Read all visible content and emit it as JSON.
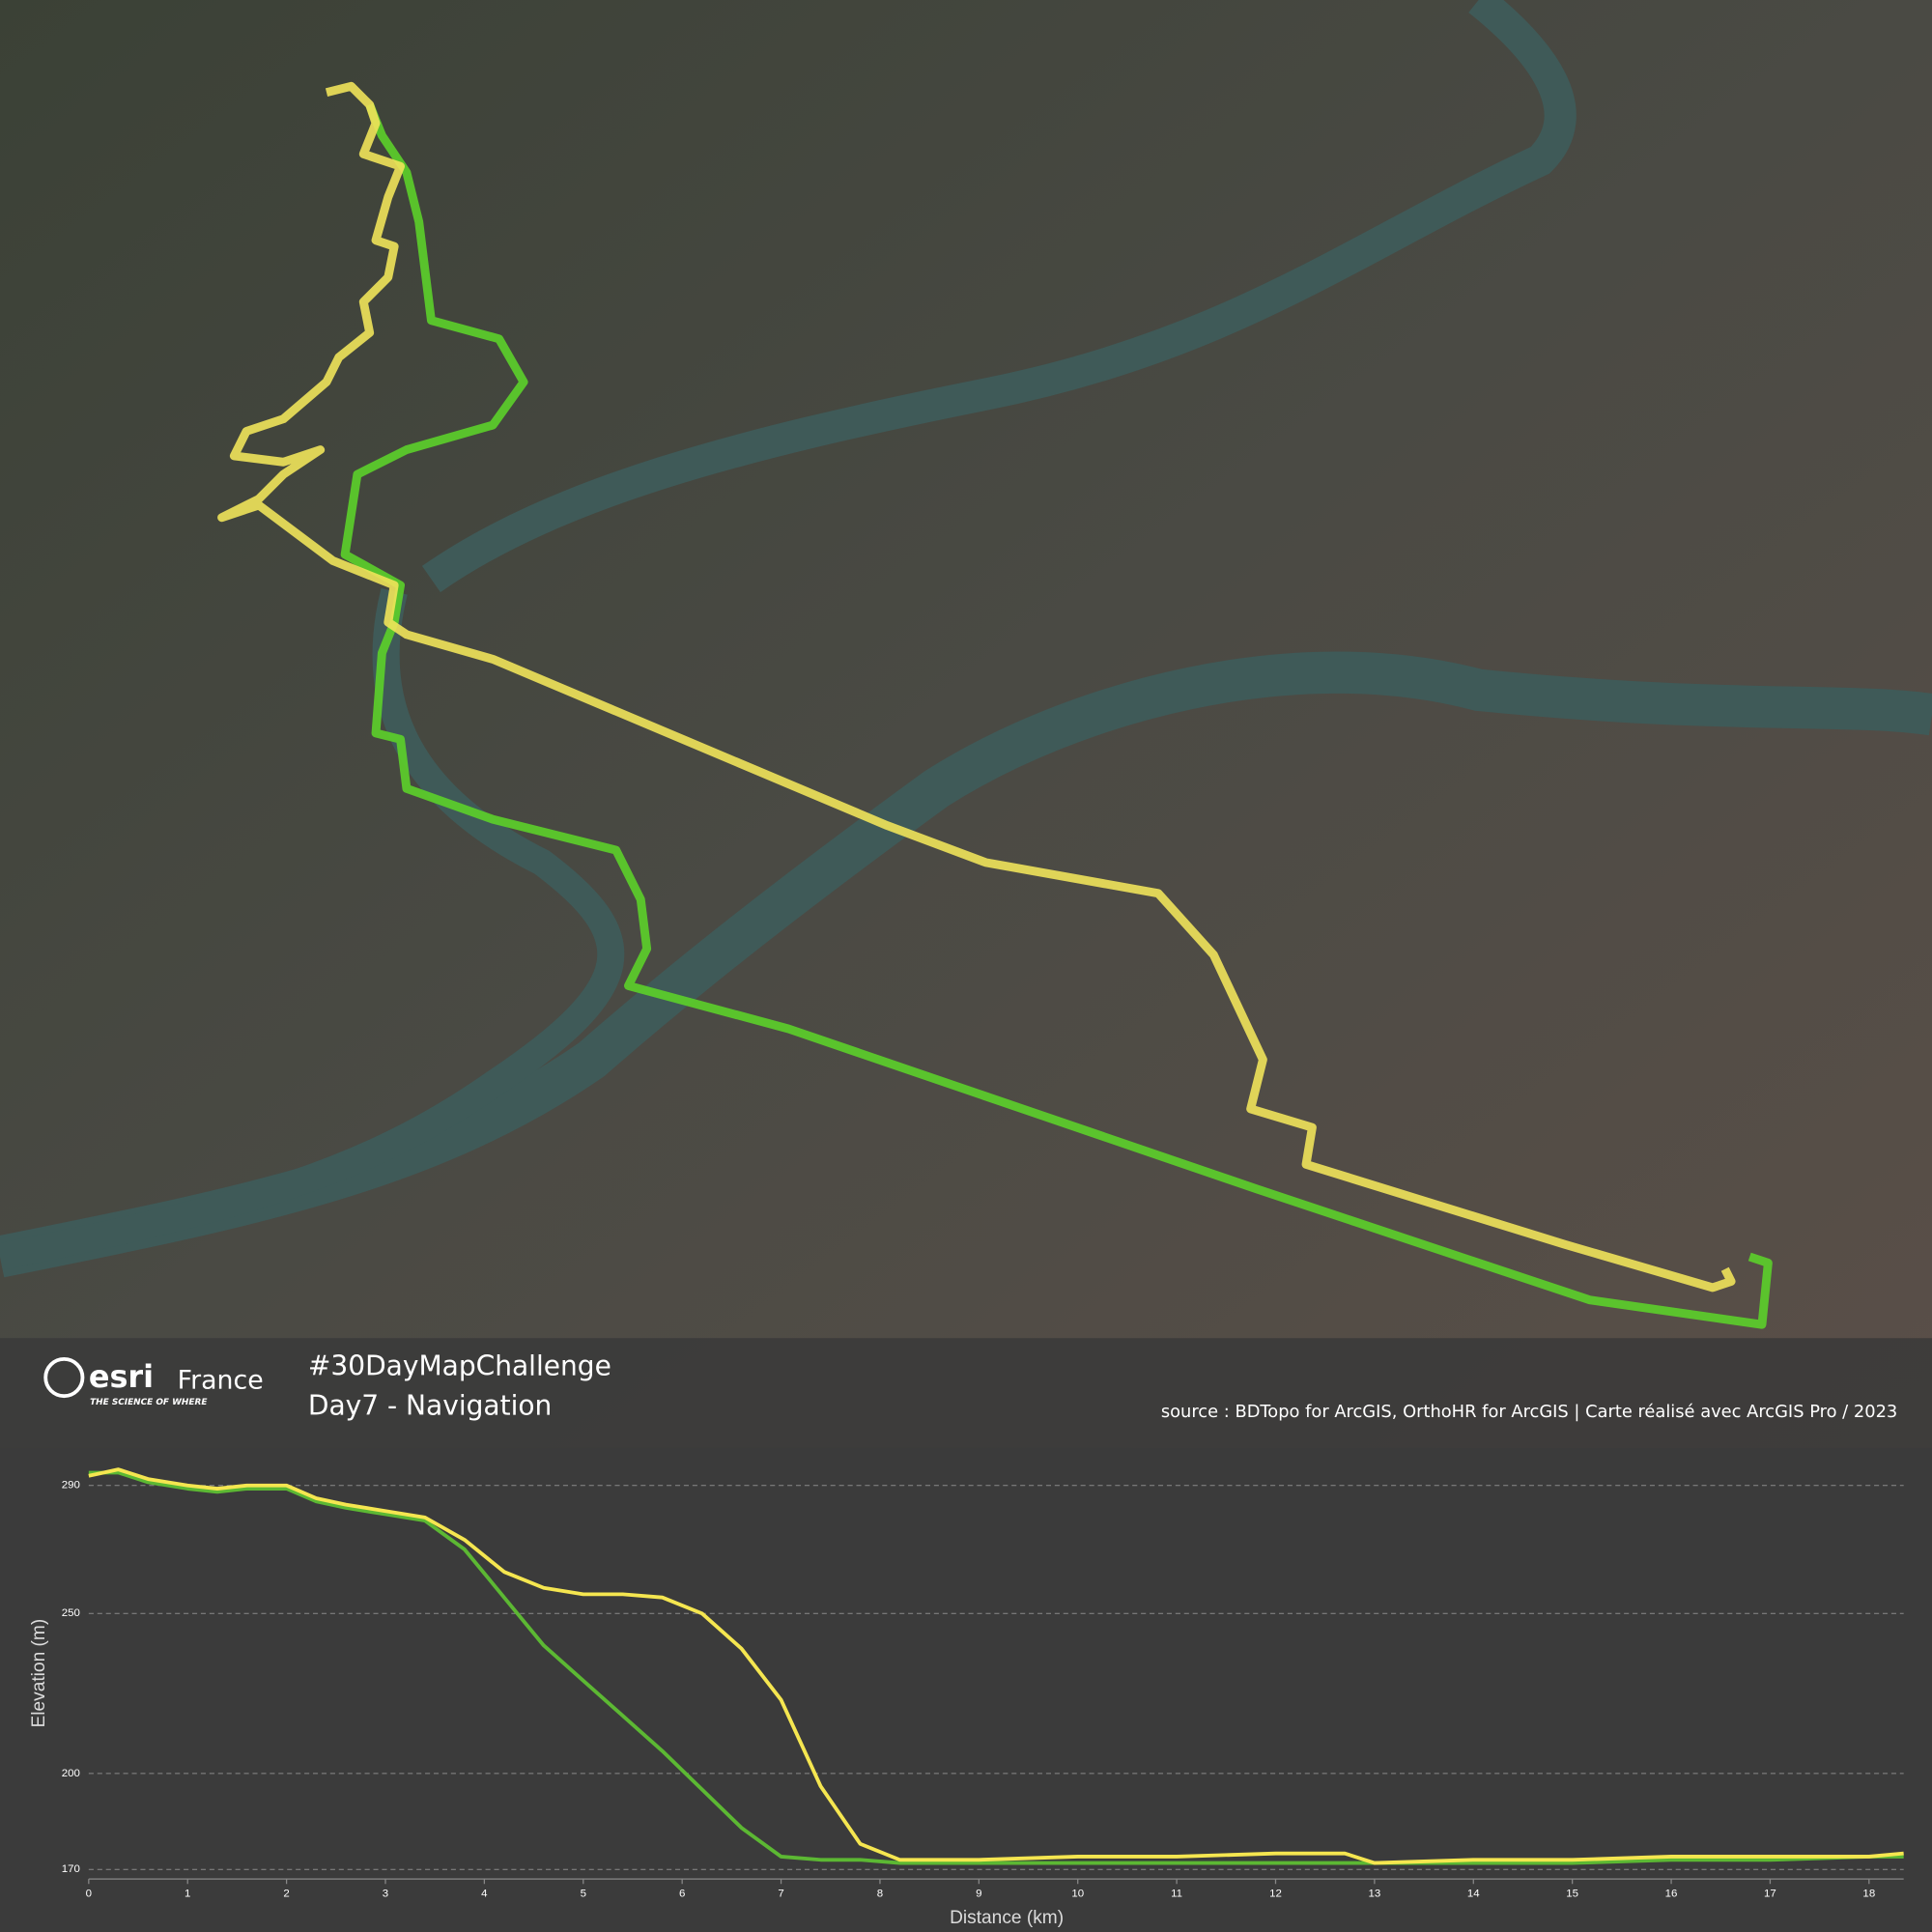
{
  "banner": {
    "logo": "esri",
    "logo_country": "France",
    "logo_tagline": "THE SCIENCE OF WHERE",
    "hashtag": "#30DayMapChallenge",
    "day": "Day7 - Navigation",
    "source": "source : BDTopo for ArcGIS, OrthoHR for ArcGIS | Carte réalisé avec ArcGIS Pro / 2023"
  },
  "chart_data": {
    "type": "line",
    "xlabel": "Distance (km)",
    "ylabel": "Elevation (m)",
    "x": [
      0,
      0.3,
      0.6,
      1,
      1.3,
      1.6,
      2,
      2.3,
      2.6,
      3,
      3.4,
      3.8,
      4.2,
      4.6,
      5,
      5.4,
      5.8,
      6.2,
      6.6,
      7,
      7.4,
      7.8,
      8.2,
      9,
      10,
      11,
      12,
      12.7,
      13,
      14,
      15,
      16,
      17,
      18,
      18.35
    ],
    "series": [
      {
        "name": "Green route",
        "color": "#5cb833",
        "values": [
          294,
          294,
          291,
          289,
          288,
          289,
          289,
          285,
          283,
          281,
          279,
          270,
          255,
          240,
          229,
          218,
          207,
          195,
          183,
          174,
          173,
          173,
          172,
          172,
          172,
          172,
          172,
          172,
          172,
          172,
          172,
          173,
          173,
          174,
          174
        ]
      },
      {
        "name": "Yellow route",
        "color": "#f5e650",
        "values": [
          293,
          295,
          292,
          290,
          289,
          290,
          290,
          286,
          284,
          282,
          280,
          273,
          263,
          258,
          256,
          256,
          255,
          250,
          239,
          223,
          196,
          178,
          173,
          173,
          174,
          174,
          175,
          175,
          172,
          173,
          173,
          174,
          174,
          174,
          175
        ]
      }
    ],
    "xlim": [
      0,
      18.35
    ],
    "xticks": [
      0,
      1,
      2,
      3,
      4,
      5,
      6,
      7,
      8,
      9,
      10,
      11,
      12,
      13,
      14,
      15,
      16,
      17,
      18
    ],
    "ylim": [
      167,
      296
    ],
    "yticks": [
      170,
      200,
      250,
      290
    ],
    "grid": true
  }
}
